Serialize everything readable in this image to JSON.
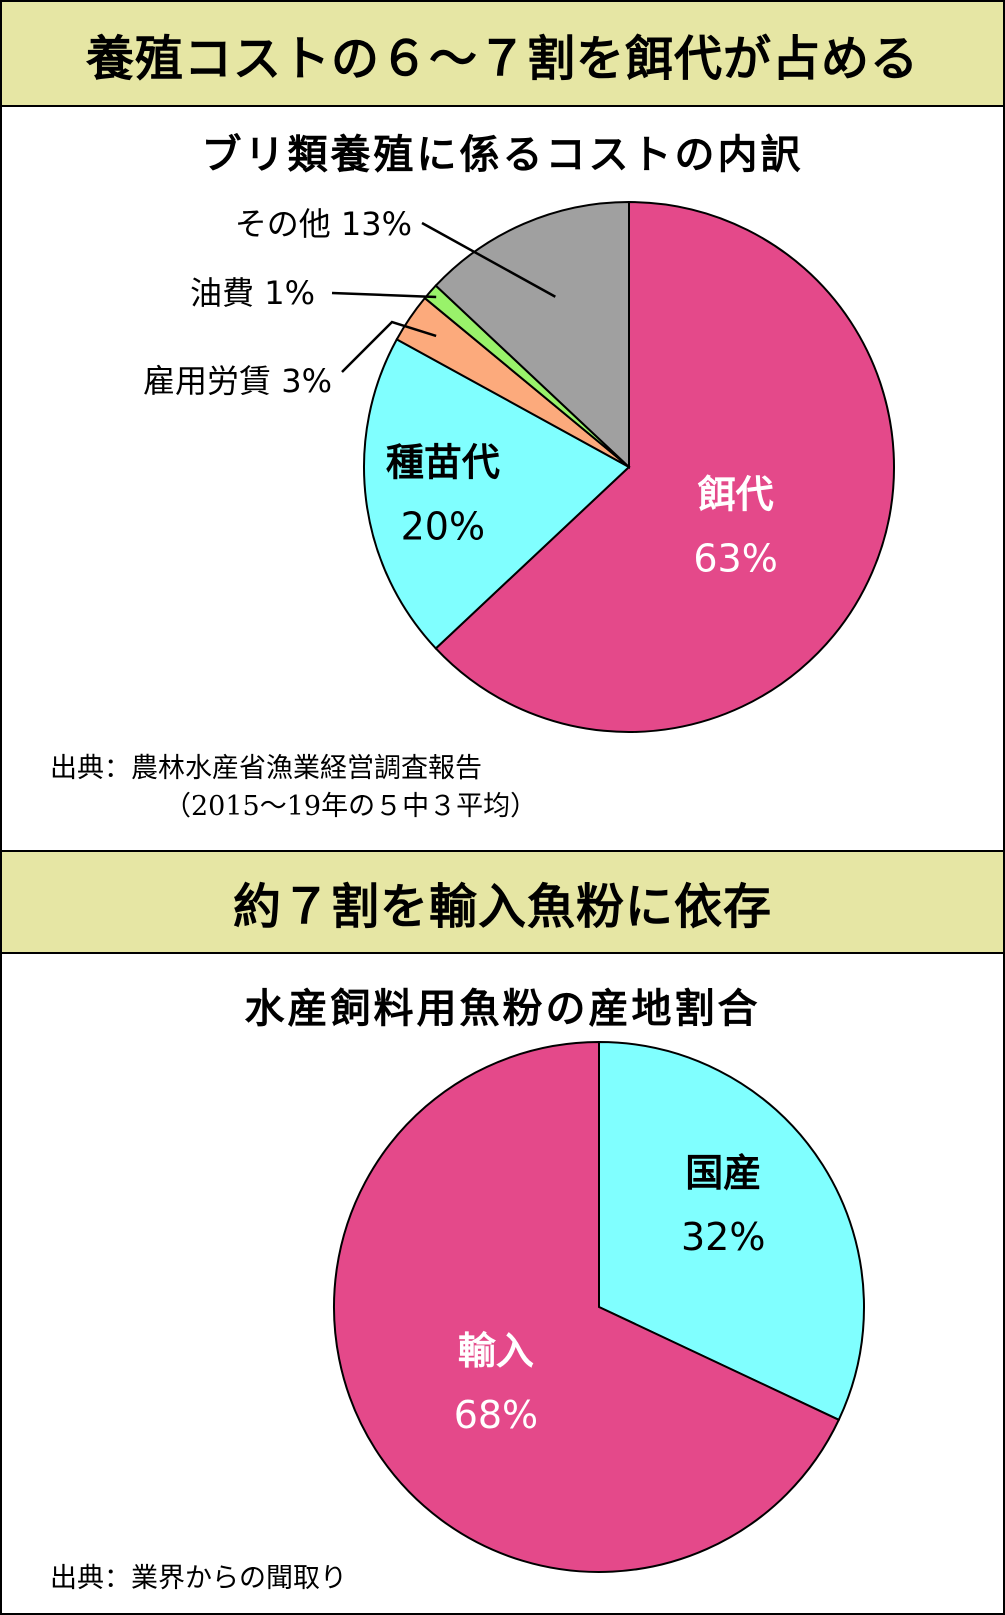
{
  "banner1": "養殖コストの６～７割を餌代が占める",
  "banner2": "約７割を輸入魚粉に依存",
  "chart_data": [
    {
      "type": "pie",
      "title": "ブリ類養殖に係るコストの内訳",
      "unit": "%",
      "slices": [
        {
          "label": "餌代",
          "value": 63,
          "color": "#e4498a",
          "text_color": "#ffffff",
          "value_text": "63%"
        },
        {
          "label": "種苗代",
          "value": 20,
          "color": "#80ffff",
          "text_color": "#000000",
          "value_text": "20%"
        },
        {
          "label": "雇用労賃",
          "value": 3,
          "color": "#fcaa7c",
          "text_color": "#000000",
          "value_text": "3%"
        },
        {
          "label": "油費",
          "value": 1,
          "color": "#99f26a",
          "text_color": "#000000",
          "value_text": "1%"
        },
        {
          "label": "その他",
          "value": 13,
          "color": "#a0a0a0",
          "text_color": "#000000",
          "value_text": "13%"
        }
      ],
      "source": "出典：農林水産省漁業経営調査報告",
      "source_note": "（2015～19年の５中３平均）"
    },
    {
      "type": "pie",
      "title": "水産飼料用魚粉の産地割合",
      "unit": "%",
      "slices": [
        {
          "label": "国産",
          "value": 32,
          "color": "#80ffff",
          "text_color": "#000000",
          "value_text": "32%"
        },
        {
          "label": "輸入",
          "value": 68,
          "color": "#e4498a",
          "text_color": "#ffffff",
          "value_text": "68%"
        }
      ],
      "source": "出典：業界からの聞取り"
    }
  ]
}
